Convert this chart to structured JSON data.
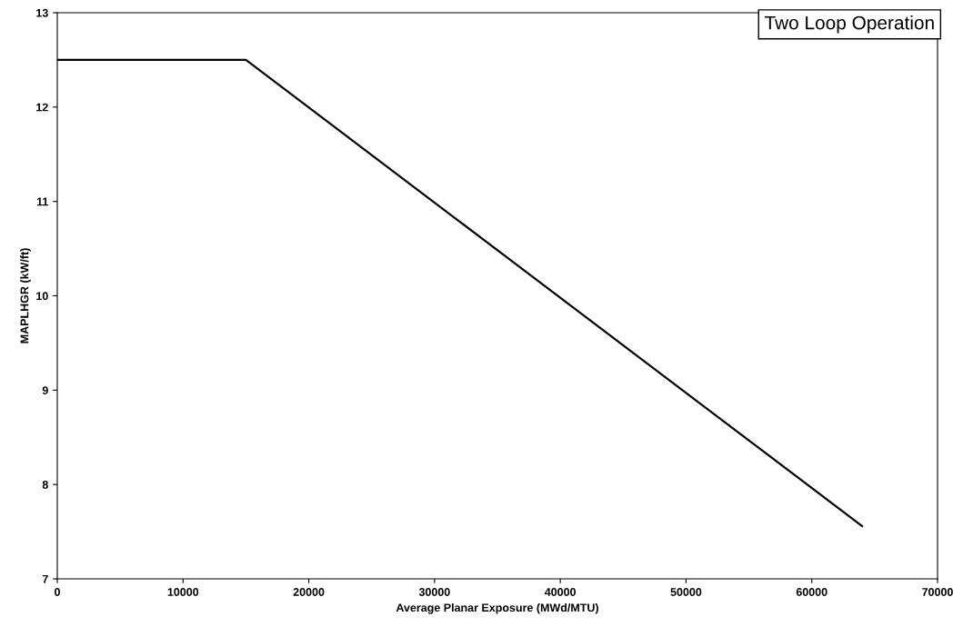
{
  "chart_data": {
    "type": "line",
    "xlabel": "Average Planar Exposure (MWd/MTU)",
    "ylabel": "MAPLHGR (kW/ft)",
    "annotations": [
      "Two Loop Operation"
    ],
    "x": [
      0,
      15000,
      64000
    ],
    "series": [
      {
        "color": "#000000",
        "values": [
          12.5,
          12.5,
          7.56
        ]
      }
    ],
    "xlim": [
      0,
      70000
    ],
    "xticks": [
      0,
      10000,
      20000,
      30000,
      40000,
      50000,
      60000,
      70000
    ],
    "ylim": [
      7,
      13
    ],
    "yticks": [
      7,
      8,
      9,
      10,
      11,
      12,
      13
    ],
    "grid": false,
    "legend": false,
    "marker": "none",
    "line_style": "solid"
  }
}
